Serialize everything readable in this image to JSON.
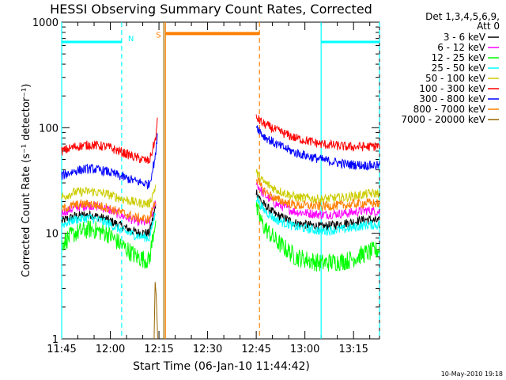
{
  "chart_data": {
    "type": "line",
    "title": "HESSI Observing Summary Count Rates, Corrected",
    "xlabel": "Start Time (06-Jan-10 11:44:42)",
    "ylabel": "Corrected Count Rate (s⁻¹ detector⁻¹)",
    "x_unit": "minutes after 11:45 UT",
    "xlim": [
      0,
      98
    ],
    "ylim": [
      1,
      1000
    ],
    "yscale": "log",
    "x_tick_labels": [
      "11:45",
      "12:00",
      "12:15",
      "12:30",
      "12:45",
      "13:00",
      "13:15"
    ],
    "x_tick_positions": [
      0,
      15,
      30,
      45,
      60,
      75,
      90
    ],
    "y_tick_labels": [
      "1",
      "10",
      "100",
      "1000"
    ],
    "y_tick_values": [
      1,
      10,
      100,
      1000
    ],
    "legend_header": [
      "Det 1,3,4,5,6,9,",
      "Att 0"
    ],
    "legend_placement": "right",
    "footer_timestamp": "10-May-2010 19:18",
    "series": [
      {
        "name": "3 - 6 keV",
        "color": "#000000",
        "values1": [
          [
            0,
            13
          ],
          [
            4,
            14.5
          ],
          [
            9,
            15
          ],
          [
            14,
            13.5
          ],
          [
            19,
            11.5
          ],
          [
            23,
            10.2
          ],
          [
            27,
            10
          ],
          [
            29,
            18
          ]
        ],
        "values2": [
          [
            60,
            25
          ],
          [
            62,
            19
          ],
          [
            66,
            15
          ],
          [
            72,
            12.5
          ],
          [
            80,
            11.5
          ],
          [
            88,
            12.5
          ],
          [
            94,
            13.5
          ],
          [
            98,
            13
          ]
        ]
      },
      {
        "name": "6 - 12 keV",
        "color": "#ff00ff",
        "values1": [
          [
            0,
            15.5
          ],
          [
            4,
            17.5
          ],
          [
            9,
            18.5
          ],
          [
            14,
            17
          ],
          [
            19,
            14.5
          ],
          [
            23,
            13
          ],
          [
            27,
            12.5
          ],
          [
            29,
            20
          ]
        ],
        "values2": [
          [
            60,
            30
          ],
          [
            62,
            24
          ],
          [
            66,
            19
          ],
          [
            72,
            16
          ],
          [
            80,
            15
          ],
          [
            88,
            15.5
          ],
          [
            94,
            16.5
          ],
          [
            98,
            16
          ]
        ]
      },
      {
        "name": "12 - 25 keV",
        "color": "#00ff00",
        "values1": [
          [
            0,
            8
          ],
          [
            4,
            10
          ],
          [
            9,
            11
          ],
          [
            14,
            10
          ],
          [
            19,
            7.5
          ],
          [
            23,
            6
          ],
          [
            27,
            5.5
          ],
          [
            29,
            14
          ]
        ],
        "values2": [
          [
            60,
            17
          ],
          [
            62,
            12
          ],
          [
            66,
            8.5
          ],
          [
            72,
            6
          ],
          [
            80,
            5.2
          ],
          [
            88,
            5.5
          ],
          [
            94,
            6.5
          ],
          [
            98,
            7
          ]
        ]
      },
      {
        "name": "25 - 50 keV",
        "color": "#00ffff",
        "values1": [
          [
            0,
            12
          ],
          [
            4,
            13.5
          ],
          [
            9,
            14
          ],
          [
            14,
            12.5
          ],
          [
            19,
            10.5
          ],
          [
            23,
            9.5
          ],
          [
            27,
            9
          ],
          [
            29,
            16
          ]
        ],
        "values2": [
          [
            60,
            22
          ],
          [
            62,
            17
          ],
          [
            66,
            13.5
          ],
          [
            72,
            11.5
          ],
          [
            80,
            10.5
          ],
          [
            88,
            11
          ],
          [
            94,
            12
          ],
          [
            98,
            12
          ]
        ]
      },
      {
        "name": "50 - 100 keV",
        "color": "#cccc00",
        "values1": [
          [
            0,
            22
          ],
          [
            4,
            24.5
          ],
          [
            9,
            25
          ],
          [
            14,
            23.5
          ],
          [
            19,
            21
          ],
          [
            23,
            19.5
          ],
          [
            27,
            19
          ],
          [
            29,
            28
          ]
        ],
        "values2": [
          [
            60,
            38
          ],
          [
            62,
            31
          ],
          [
            66,
            26
          ],
          [
            72,
            22
          ],
          [
            80,
            21
          ],
          [
            88,
            22
          ],
          [
            94,
            23.5
          ],
          [
            98,
            24
          ]
        ]
      },
      {
        "name": "100 - 300 keV",
        "color": "#ff0000",
        "values1": [
          [
            0,
            60
          ],
          [
            4,
            66
          ],
          [
            9,
            69
          ],
          [
            14,
            66
          ],
          [
            19,
            58
          ],
          [
            23,
            52
          ],
          [
            27,
            48
          ],
          [
            29,
            80
          ],
          [
            29.5,
            115
          ]
        ],
        "values2": [
          [
            60,
            125
          ],
          [
            62,
            110
          ],
          [
            66,
            95
          ],
          [
            72,
            80
          ],
          [
            80,
            70
          ],
          [
            88,
            66
          ],
          [
            94,
            66
          ],
          [
            98,
            67
          ]
        ]
      },
      {
        "name": "300 - 800 keV",
        "color": "#0000ff",
        "values1": [
          [
            0,
            35
          ],
          [
            4,
            39
          ],
          [
            9,
            41
          ],
          [
            14,
            38.5
          ],
          [
            19,
            34
          ],
          [
            23,
            31
          ],
          [
            27,
            29
          ],
          [
            29,
            55
          ],
          [
            29.5,
            90
          ]
        ],
        "values2": [
          [
            60,
            105
          ],
          [
            62,
            85
          ],
          [
            66,
            70
          ],
          [
            72,
            58
          ],
          [
            80,
            50
          ],
          [
            88,
            45
          ],
          [
            94,
            44
          ],
          [
            98,
            44
          ]
        ]
      },
      {
        "name": "800 - 7000 keV",
        "color": "#ff8000",
        "values1": [
          [
            0,
            17
          ],
          [
            4,
            18.5
          ],
          [
            9,
            19
          ],
          [
            14,
            17.5
          ],
          [
            19,
            15.5
          ],
          [
            23,
            14
          ],
          [
            27,
            13.5
          ],
          [
            29,
            21
          ]
        ],
        "values2": [
          [
            60,
            33
          ],
          [
            62,
            26
          ],
          [
            66,
            21
          ],
          [
            72,
            18.5
          ],
          [
            80,
            18
          ],
          [
            88,
            18.5
          ],
          [
            94,
            19.5
          ],
          [
            98,
            19
          ]
        ]
      },
      {
        "name": "7000 - 20000 keV",
        "color": "#996600",
        "values1": [
          [
            28.5,
            1
          ],
          [
            28.8,
            3.5
          ],
          [
            29.2,
            2.5
          ],
          [
            29.6,
            1
          ]
        ],
        "values2": []
      }
    ],
    "annotations": [
      {
        "label": "N",
        "color": "#00ffff",
        "kind": "night",
        "intervals": [
          [
            0,
            18.5
          ],
          [
            80,
            98
          ]
        ],
        "level": 650
      },
      {
        "label": "S",
        "color": "#ff8000",
        "kind": "saa",
        "intervals": [
          [
            32,
            61
          ]
        ],
        "level": 780
      }
    ],
    "vertical_markers": [
      {
        "x": 0,
        "color": "#00ffff",
        "style": "solid"
      },
      {
        "x": 18.5,
        "color": "#00ffff",
        "style": "dashed"
      },
      {
        "x": 80,
        "color": "#00ffff",
        "style": "solid"
      },
      {
        "x": 98,
        "color": "#00ffff",
        "style": "dashed"
      },
      {
        "x": 32,
        "color": "#ff8000",
        "style": "solid"
      },
      {
        "x": 61,
        "color": "#ff8000",
        "style": "dashed"
      },
      {
        "x": 31.5,
        "color": "#996600",
        "style": "solid"
      }
    ]
  }
}
